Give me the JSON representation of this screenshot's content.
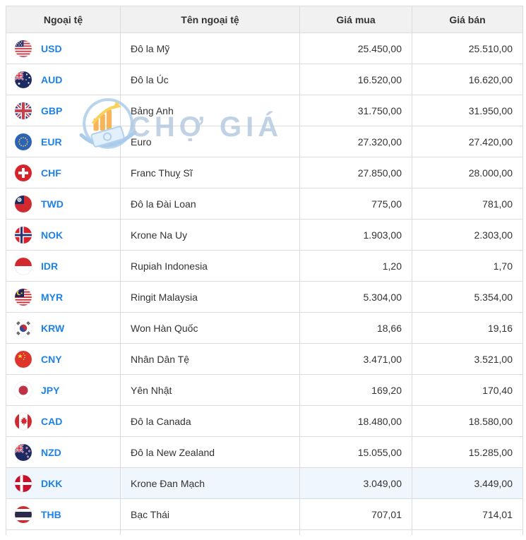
{
  "watermark": {
    "text": "CHỢ GIÁ"
  },
  "colors": {
    "accent_blue": "#1e82e6",
    "header_bg": "#f1f1f1",
    "border": "#dcdcdc",
    "row_highlight": "#f0f6fd"
  },
  "table": {
    "headers": [
      "Ngoại tệ",
      "Tên ngoại tệ",
      "Giá mua",
      "Giá bán"
    ],
    "rows": [
      {
        "code": "USD",
        "flag": "usa-flag-icon",
        "name": "Đô la Mỹ",
        "buy": "25.450,00",
        "sell": "25.510,00",
        "highlighted": false
      },
      {
        "code": "AUD",
        "flag": "australia-flag-icon",
        "name": "Đô la Úc",
        "buy": "16.520,00",
        "sell": "16.620,00",
        "highlighted": false
      },
      {
        "code": "GBP",
        "flag": "uk-flag-icon",
        "name": "Bảng Anh",
        "buy": "31.750,00",
        "sell": "31.950,00",
        "highlighted": false
      },
      {
        "code": "EUR",
        "flag": "eu-flag-icon",
        "name": "Euro",
        "buy": "27.320,00",
        "sell": "27.420,00",
        "highlighted": false
      },
      {
        "code": "CHF",
        "flag": "switzerland-flag-icon",
        "name": "Franc Thuỵ Sĩ",
        "buy": "27.850,00",
        "sell": "28.000,00",
        "highlighted": false
      },
      {
        "code": "TWD",
        "flag": "taiwan-flag-icon",
        "name": "Đô la Đài Loan",
        "buy": "775,00",
        "sell": "781,00",
        "highlighted": false
      },
      {
        "code": "NOK",
        "flag": "norway-flag-icon",
        "name": "Krone Na Uy",
        "buy": "1.903,00",
        "sell": "2.303,00",
        "highlighted": false
      },
      {
        "code": "IDR",
        "flag": "indonesia-flag-icon",
        "name": "Rupiah Indonesia",
        "buy": "1,20",
        "sell": "1,70",
        "highlighted": false
      },
      {
        "code": "MYR",
        "flag": "malaysia-flag-icon",
        "name": "Ringit Malaysia",
        "buy": "5.304,00",
        "sell": "5.354,00",
        "highlighted": false
      },
      {
        "code": "KRW",
        "flag": "south-korea-flag-icon",
        "name": "Won Hàn Quốc",
        "buy": "18,66",
        "sell": "19,16",
        "highlighted": false
      },
      {
        "code": "CNY",
        "flag": "china-flag-icon",
        "name": "Nhân Dân Tệ",
        "buy": "3.471,00",
        "sell": "3.521,00",
        "highlighted": false
      },
      {
        "code": "JPY",
        "flag": "japan-flag-icon",
        "name": "Yên Nhật",
        "buy": "169,20",
        "sell": "170,40",
        "highlighted": false
      },
      {
        "code": "CAD",
        "flag": "canada-flag-icon",
        "name": "Đô la Canada",
        "buy": "18.480,00",
        "sell": "18.580,00",
        "highlighted": false
      },
      {
        "code": "NZD",
        "flag": "new-zealand-flag-icon",
        "name": "Đô la New Zealand",
        "buy": "15.055,00",
        "sell": "15.285,00",
        "highlighted": false
      },
      {
        "code": "DKK",
        "flag": "denmark-flag-icon",
        "name": "Krone Đan Mạch",
        "buy": "3.049,00",
        "sell": "3.449,00",
        "highlighted": true
      },
      {
        "code": "THB",
        "flag": "thailand-flag-icon",
        "name": "Bạc Thái",
        "buy": "707,01",
        "sell": "714,01",
        "highlighted": false
      }
    ]
  }
}
